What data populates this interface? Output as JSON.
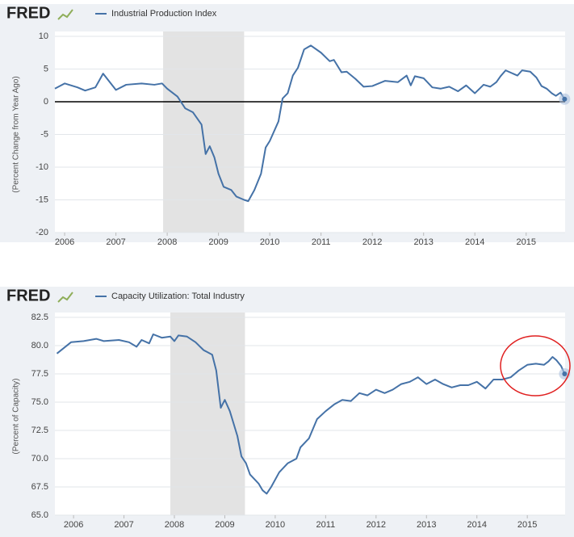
{
  "chart_data": [
    {
      "type": "line",
      "logo": "FRED",
      "ylabel": "(Percent Change from Year Ago)",
      "x": [
        2005.81,
        2006.0,
        2006.25,
        2006.4,
        2006.6,
        2006.75,
        2007.0,
        2007.2,
        2007.5,
        2007.75,
        2007.9,
        2008.0,
        2008.2,
        2008.35,
        2008.5,
        2008.67,
        2008.75,
        2008.83,
        2008.92,
        2009.0,
        2009.1,
        2009.25,
        2009.35,
        2009.5,
        2009.58,
        2009.7,
        2009.83,
        2009.92,
        2010.0,
        2010.17,
        2010.25,
        2010.35,
        2010.45,
        2010.55,
        2010.67,
        2010.8,
        2011.0,
        2011.17,
        2011.25,
        2011.4,
        2011.5,
        2011.67,
        2011.83,
        2012.0,
        2012.25,
        2012.5,
        2012.67,
        2012.75,
        2012.83,
        2013.0,
        2013.17,
        2013.33,
        2013.5,
        2013.67,
        2013.83,
        2014.0,
        2014.17,
        2014.3,
        2014.42,
        2014.5,
        2014.6,
        2014.83,
        2014.92,
        2015.08,
        2015.2,
        2015.3,
        2015.4,
        2015.5,
        2015.58,
        2015.67,
        2015.75
      ],
      "series": [
        {
          "name": "Industrial Production Index",
          "color": "#4572a7",
          "values": [
            2,
            2.8,
            2.2,
            1.7,
            2.2,
            4.3,
            1.8,
            2.6,
            2.8,
            2.6,
            2.8,
            2.0,
            0.8,
            -1.0,
            -1.6,
            -3.5,
            -8,
            -6.8,
            -8.5,
            -11,
            -13,
            -13.5,
            -14.5,
            -15,
            -15.2,
            -13.5,
            -11,
            -7,
            -6,
            -3,
            0.5,
            1.3,
            4,
            5.2,
            8,
            8.6,
            7.5,
            6.2,
            6.4,
            4.5,
            4.6,
            3.5,
            2.3,
            2.4,
            3.2,
            3.0,
            4.0,
            2.5,
            3.9,
            3.6,
            2.2,
            2.0,
            2.3,
            1.6,
            2.5,
            1.3,
            2.6,
            2.3,
            3.0,
            3.9,
            4.8,
            4.0,
            4.8,
            4.6,
            3.7,
            2.4,
            2.0,
            1.3,
            0.9,
            1.4,
            0.4
          ]
        }
      ],
      "xlim": [
        2005.81,
        2015.76
      ],
      "xticks": [
        2006,
        2007,
        2008,
        2009,
        2010,
        2011,
        2012,
        2013,
        2014,
        2015
      ],
      "ylim": [
        -20,
        10
      ],
      "yticks": [
        -20,
        -15,
        -10,
        -5,
        0,
        5,
        10
      ],
      "grid": true,
      "zero_line": true,
      "shade": [
        2007.92,
        2009.5
      ]
    },
    {
      "type": "line",
      "logo": "FRED",
      "ylabel": "(Percent of Capacity)",
      "x": [
        2005.67,
        2005.95,
        2006.2,
        2006.45,
        2006.6,
        2006.9,
        2007.1,
        2007.25,
        2007.35,
        2007.5,
        2007.58,
        2007.75,
        2007.92,
        2008.0,
        2008.08,
        2008.25,
        2008.42,
        2008.58,
        2008.75,
        2008.83,
        2008.92,
        2009.0,
        2009.1,
        2009.25,
        2009.33,
        2009.42,
        2009.5,
        2009.67,
        2009.75,
        2009.83,
        2009.92,
        2010.08,
        2010.25,
        2010.42,
        2010.5,
        2010.67,
        2010.83,
        2011.0,
        2011.17,
        2011.33,
        2011.5,
        2011.67,
        2011.83,
        2012.0,
        2012.17,
        2012.33,
        2012.5,
        2012.67,
        2012.83,
        2013.0,
        2013.17,
        2013.33,
        2013.5,
        2013.67,
        2013.83,
        2014.0,
        2014.17,
        2014.33,
        2014.5,
        2014.67,
        2014.83,
        2015.0,
        2015.17,
        2015.33,
        2015.42,
        2015.5,
        2015.58,
        2015.67,
        2015.74
      ],
      "series": [
        {
          "name": "Capacity Utilization: Total Industry",
          "color": "#4572a7",
          "values": [
            79.3,
            80.3,
            80.4,
            80.6,
            80.4,
            80.5,
            80.3,
            79.9,
            80.5,
            80.2,
            81.0,
            80.7,
            80.8,
            80.4,
            80.9,
            80.8,
            80.3,
            79.6,
            79.2,
            77.8,
            74.5,
            75.2,
            74.2,
            72,
            70.2,
            69.6,
            68.6,
            67.8,
            67.2,
            66.9,
            67.5,
            68.8,
            69.6,
            70.0,
            71.0,
            71.8,
            73.5,
            74.2,
            74.8,
            75.2,
            75.1,
            75.8,
            75.6,
            76.1,
            75.8,
            76.1,
            76.6,
            76.8,
            77.2,
            76.6,
            77.0,
            76.6,
            76.3,
            76.5,
            76.5,
            76.8,
            76.2,
            77.0,
            77.0,
            77.2,
            77.8,
            78.3,
            78.4,
            78.3,
            78.6,
            79.0,
            78.7,
            78.2,
            77.5
          ]
        }
      ],
      "xlim": [
        2005.63,
        2015.75
      ],
      "xticks": [
        2006,
        2007,
        2008,
        2009,
        2010,
        2011,
        2012,
        2013,
        2014,
        2015
      ],
      "ylim": [
        65,
        82.5
      ],
      "yticks": [
        {
          "value": 65,
          "label": "65.0"
        },
        67.5,
        {
          "value": 70,
          "label": "70.0"
        },
        72.5,
        {
          "value": 75,
          "label": "75.0"
        },
        77.5,
        {
          "value": 80,
          "label": "80.0"
        },
        82.5
      ],
      "grid": true,
      "zero_line": false,
      "shade": [
        2007.92,
        2009.4
      ]
    }
  ]
}
